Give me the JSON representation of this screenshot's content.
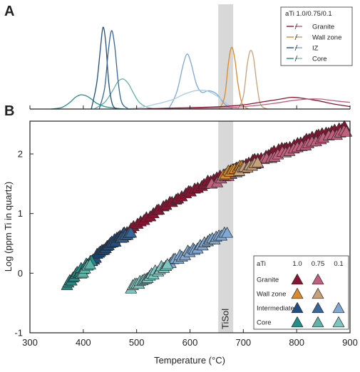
{
  "chart_data": [
    {
      "panel": "A",
      "type": "line",
      "description_source": "kernel density of Ti-in-quartz temperatures",
      "legend": {
        "title": "aTi 1.0/0.75/0.1",
        "entries": [
          {
            "label": "Granite",
            "colors": [
              "#8B1433",
              "#C0607E"
            ]
          },
          {
            "label": "Wall zone",
            "colors": [
              "#DB8A2B",
              "#C8A07A"
            ]
          },
          {
            "label": "IZ",
            "colors": [
              "#1F4E80",
              "#7FA8D2"
            ]
          },
          {
            "label": "Core",
            "colors": [
              "#1F8F8A",
              "#7DC6C0"
            ]
          }
        ]
      },
      "xlim": [
        300,
        900
      ],
      "ylim": [
        0,
        1
      ],
      "series": [
        {
          "name": "Core",
          "color": "#1F8F8A",
          "x": [
            340,
            360,
            375,
            385,
            395,
            405,
            415,
            425,
            440,
            460,
            480,
            500
          ],
          "y": [
            0,
            0.02,
            0.08,
            0.14,
            0.17,
            0.16,
            0.12,
            0.07,
            0.03,
            0.01,
            0,
            0
          ]
        },
        {
          "name": "Core",
          "color": "#5FB3A6",
          "x": [
            420,
            440,
            455,
            465,
            475,
            485,
            495,
            505,
            520,
            540
          ],
          "y": [
            0,
            0.08,
            0.22,
            0.33,
            0.36,
            0.3,
            0.18,
            0.08,
            0.02,
            0
          ]
        },
        {
          "name": "IZ",
          "color": "#1F4E80",
          "x": [
            415,
            425,
            432,
            437,
            442,
            448,
            455,
            465
          ],
          "y": [
            0,
            0.3,
            0.72,
            0.98,
            0.8,
            0.3,
            0.05,
            0
          ]
        },
        {
          "name": "IZ",
          "color": "#36669A",
          "x": [
            430,
            440,
            447,
            453,
            459,
            465,
            472,
            485
          ],
          "y": [
            0,
            0.25,
            0.7,
            0.94,
            0.75,
            0.35,
            0.08,
            0
          ]
        },
        {
          "name": "IZ",
          "color": "#7FA8D2",
          "x": [
            560,
            575,
            588,
            595,
            602,
            612,
            622,
            635,
            650,
            665,
            680
          ],
          "y": [
            0,
            0.2,
            0.55,
            0.66,
            0.55,
            0.3,
            0.2,
            0.22,
            0.18,
            0.06,
            0
          ]
        },
        {
          "name": "IZ",
          "color": "#A9CBE8",
          "x": [
            480,
            510,
            530,
            550,
            570,
            590,
            610,
            630,
            650,
            670,
            690
          ],
          "y": [
            0,
            0.02,
            0.05,
            0.08,
            0.12,
            0.18,
            0.22,
            0.22,
            0.16,
            0.06,
            0
          ]
        },
        {
          "name": "Wall zone",
          "color": "#DB8A2B",
          "x": [
            655,
            665,
            672,
            678,
            684,
            690,
            698,
            710
          ],
          "y": [
            0,
            0.15,
            0.55,
            0.74,
            0.6,
            0.3,
            0.06,
            0
          ]
        },
        {
          "name": "Wall zone",
          "color": "#C8A07A",
          "x": [
            690,
            700,
            707,
            713,
            719,
            725,
            732,
            745
          ],
          "y": [
            0,
            0.15,
            0.52,
            0.7,
            0.62,
            0.32,
            0.06,
            0
          ]
        },
        {
          "name": "Granite",
          "color": "#8B1433",
          "x": [
            500,
            560,
            620,
            660,
            700,
            740,
            770,
            790,
            810,
            840,
            870,
            900
          ],
          "y": [
            0,
            0.01,
            0.02,
            0.03,
            0.05,
            0.09,
            0.12,
            0.14,
            0.13,
            0.1,
            0.06,
            0.03
          ]
        },
        {
          "name": "Granite",
          "color": "#C0607E",
          "x": [
            560,
            620,
            680,
            720,
            760,
            790,
            820,
            845,
            870,
            900
          ],
          "y": [
            0,
            0.01,
            0.02,
            0.04,
            0.07,
            0.1,
            0.12,
            0.12,
            0.1,
            0.08
          ]
        }
      ]
    },
    {
      "panel": "B",
      "type": "scatter",
      "xlabel": "Temperature (°C)",
      "ylabel": "Log (ppm Ti in quartz)",
      "xlim": [
        300,
        900
      ],
      "ylim": [
        -1,
        2.55
      ],
      "xticks": [
        300,
        400,
        500,
        600,
        700,
        800,
        900
      ],
      "yticks": [
        -1,
        0,
        1,
        2
      ],
      "band": {
        "label": "TiSol",
        "x_range": [
          653,
          681
        ],
        "color": "#d8d8d8"
      },
      "curves": [
        {
          "name": "aTi 1.0",
          "a": 5.69,
          "b": 3765
        },
        {
          "name": "aTi 0.1",
          "a": 4.69,
          "b": 3765
        }
      ],
      "groups": [
        {
          "name": "Granite",
          "aTi": "1.0",
          "color": "#8B1433",
          "curve": "aTi 1.0",
          "xmin": 475,
          "xmax": 895,
          "n": 70,
          "jitter": 0.02
        },
        {
          "name": "Granite",
          "aTi": "0.75",
          "color": "#C0607E",
          "curve": "aTi 1.0",
          "xmin": 640,
          "xmax": 900,
          "n": 36,
          "jitter": 0.02,
          "offset": -0.07
        },
        {
          "name": "Wall zone",
          "aTi": "1.0",
          "color": "#DB8A2B",
          "curve": "aTi 1.0",
          "xmin": 662,
          "xmax": 700,
          "n": 9,
          "jitter": 0.02
        },
        {
          "name": "Wall zone",
          "aTi": "0.75",
          "color": "#C8A07A",
          "curve": "aTi 1.0",
          "xmin": 692,
          "xmax": 730,
          "n": 8,
          "jitter": 0.02,
          "offset": -0.06
        },
        {
          "name": "Intermediate",
          "aTi": "1.0",
          "color": "#1F4E80",
          "curve": "aTi 1.0",
          "xmin": 415,
          "xmax": 478,
          "n": 24,
          "jitter": 0.03
        },
        {
          "name": "Intermediate",
          "aTi": "0.75",
          "color": "#36669A",
          "curve": "aTi 1.0",
          "xmin": 470,
          "xmax": 492,
          "n": 6,
          "jitter": 0.03,
          "offset": -0.05
        },
        {
          "name": "Intermediate",
          "aTi": "0.1",
          "color": "#7FA8D2",
          "curve": "aTi 0.1",
          "xmin": 562,
          "xmax": 672,
          "n": 24,
          "jitter": 0.03
        },
        {
          "name": "Core",
          "aTi": "1.0",
          "color": "#1F8F8A",
          "curve": "aTi 1.0",
          "xmin": 368,
          "xmax": 418,
          "n": 18,
          "jitter": 0.03
        },
        {
          "name": "Core",
          "aTi": "0.75",
          "color": "#5FB3A6",
          "curve": "aTi 1.0",
          "xmin": 395,
          "xmax": 415,
          "n": 5,
          "jitter": 0.03,
          "offset": -0.05
        },
        {
          "name": "Core",
          "aTi": "0.1",
          "color": "#7DC6C0",
          "curve": "aTi 0.1",
          "xmin": 488,
          "xmax": 560,
          "n": 20,
          "jitter": 0.03
        }
      ],
      "legend": {
        "header": [
          "aTi",
          "1.0",
          "0.75",
          "0.1"
        ],
        "rows": [
          {
            "label": "Granite",
            "colors": [
              "#8B1433",
              "#C0607E",
              null
            ]
          },
          {
            "label": "Wall zone",
            "colors": [
              "#DB8A2B",
              "#C8A07A",
              null
            ]
          },
          {
            "label": "Intermediate",
            "colors": [
              "#1F4E80",
              "#36669A",
              "#7FA8D2"
            ]
          },
          {
            "label": "Core",
            "colors": [
              "#1F8F8A",
              "#5FB3A6",
              "#7DC6C0"
            ]
          }
        ]
      }
    }
  ],
  "panel_labels": {
    "a": "A",
    "b": "B"
  }
}
